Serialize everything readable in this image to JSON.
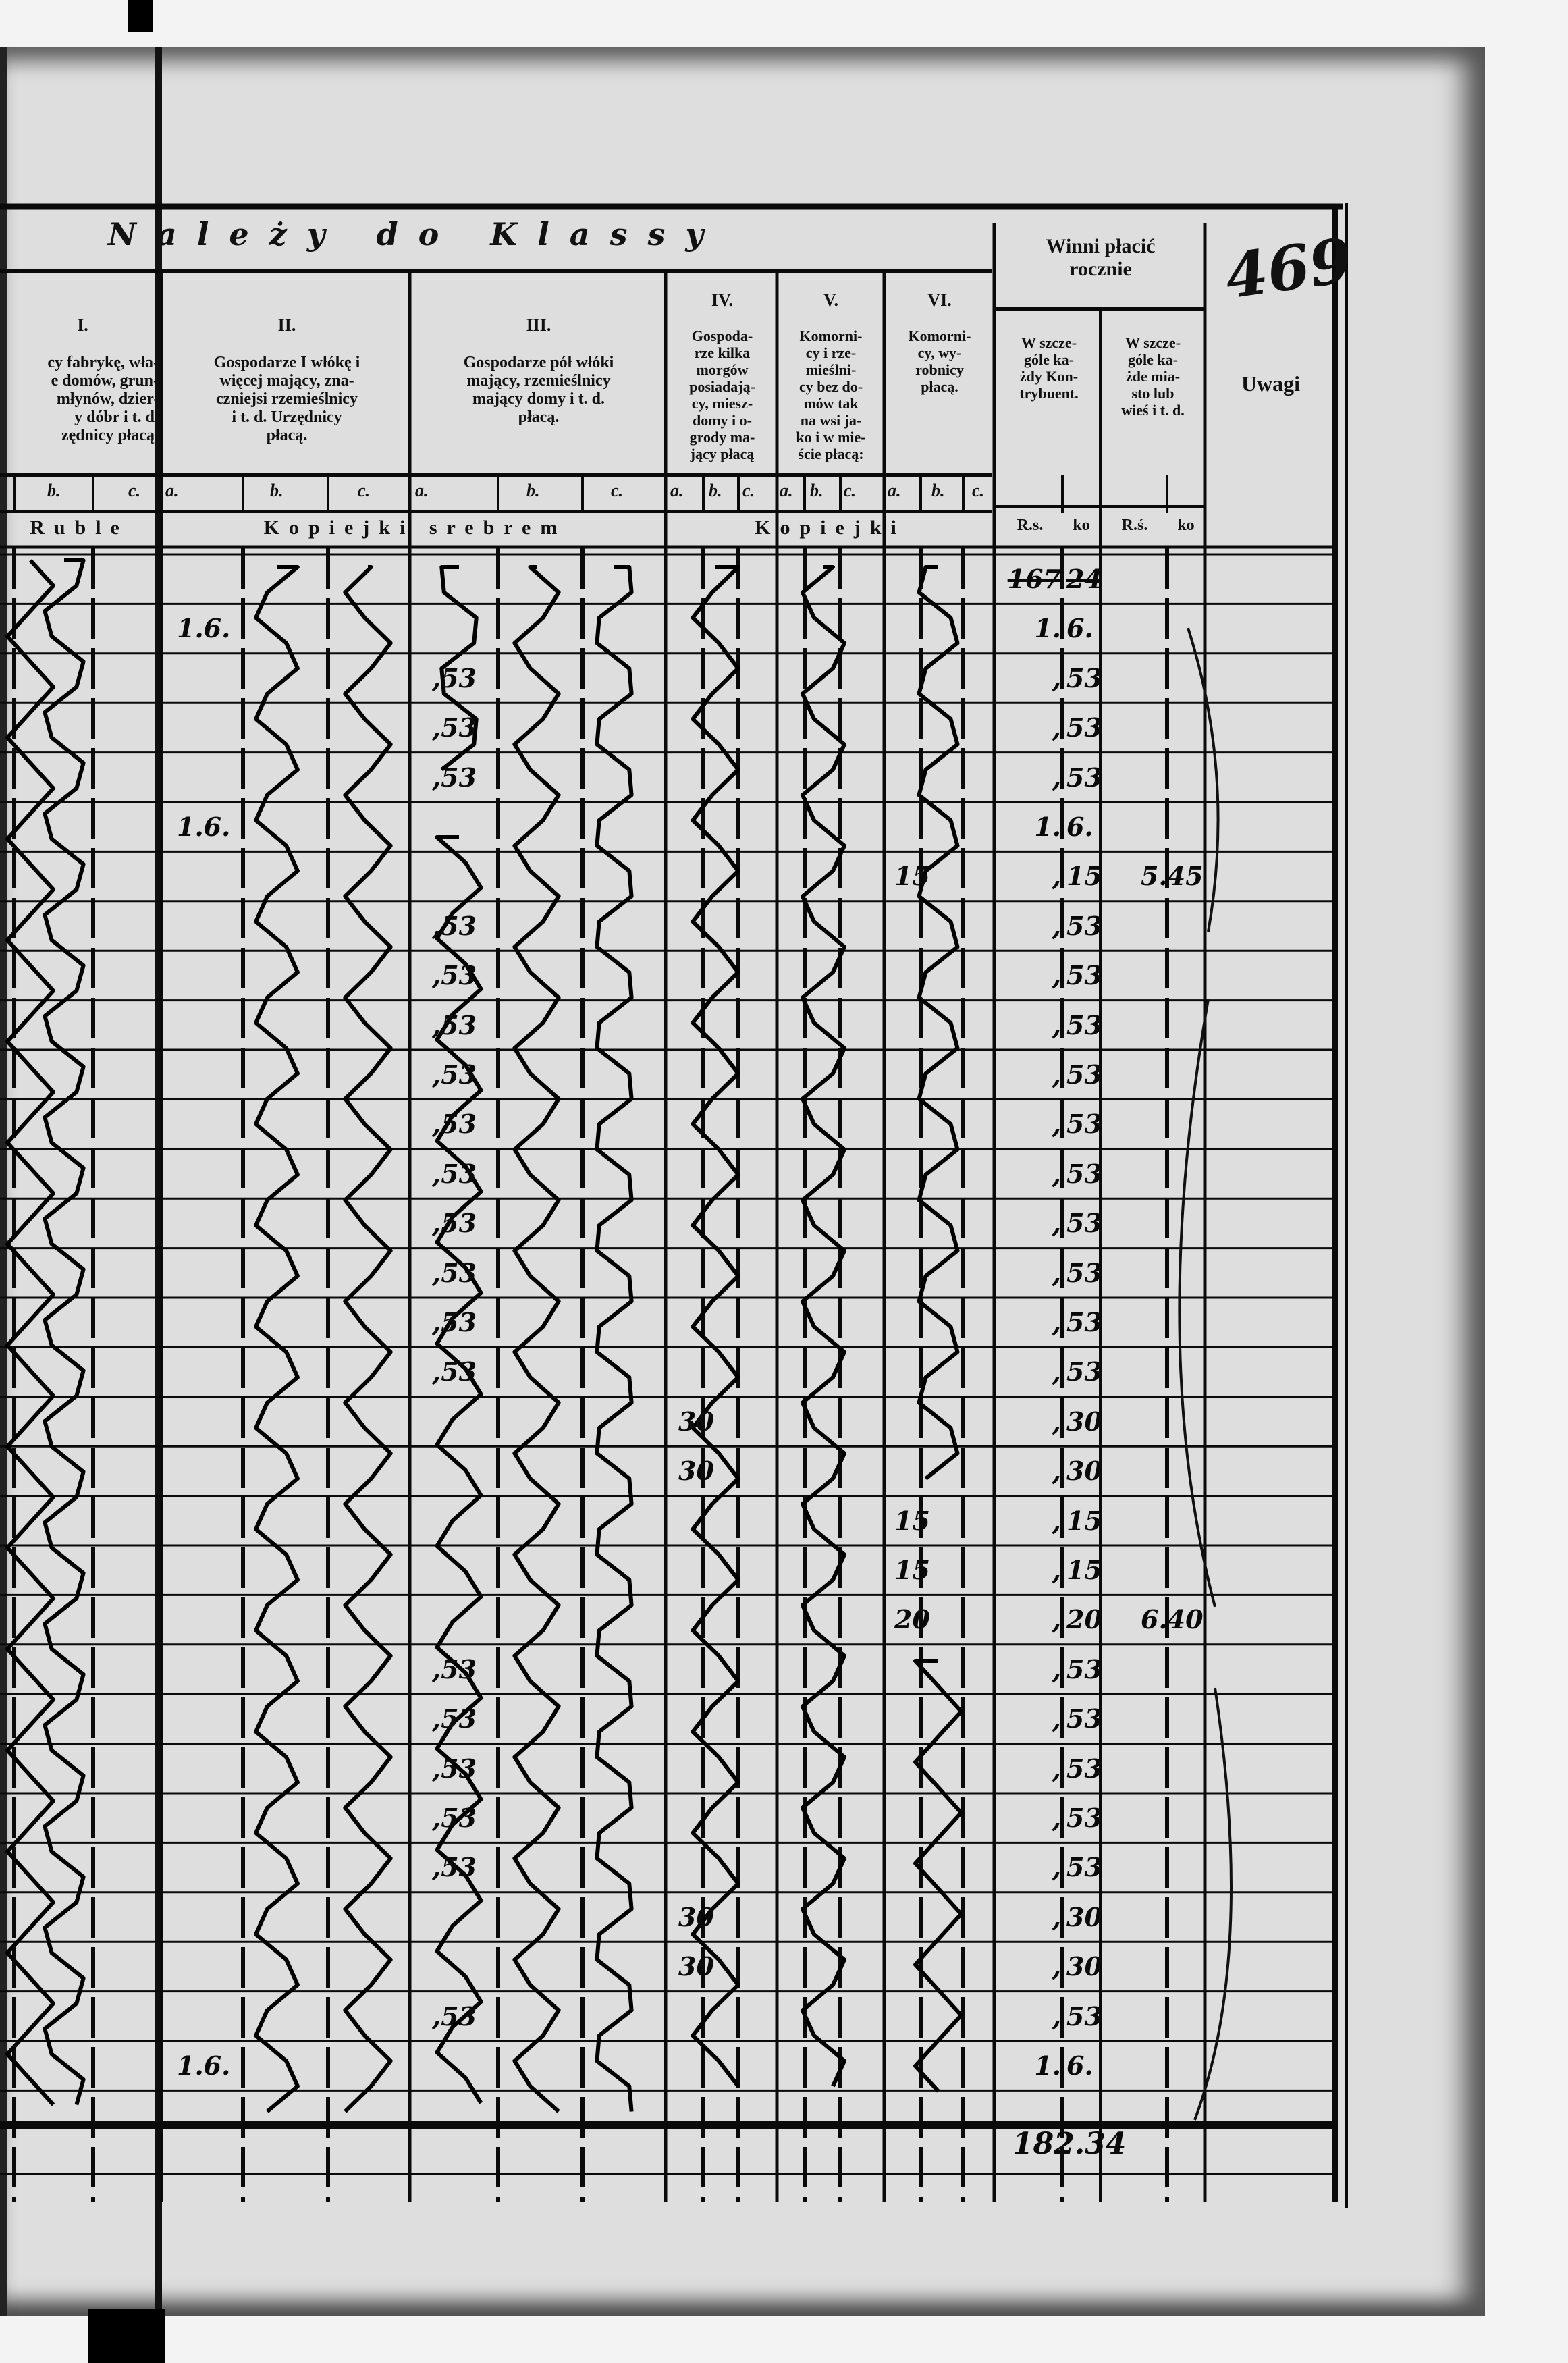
{
  "page_number": "469",
  "header": {
    "title": "Należy do Klassy",
    "classes": [
      {
        "numeral": "I.",
        "text": "cy fabrykę, wła-\ne domów, grun-\nmłynów, dzier-\ny dóbr i t. d.\nzędnicy płacą."
      },
      {
        "numeral": "II.",
        "text": "Gospodarze I włókę i\nwięcej mający, zna-\nczniejsi rzemieślnicy\ni t. d. Urzędnicy\npłacą."
      },
      {
        "numeral": "III.",
        "text": "Gospodarze pół włóki\nmający, rzemieślnicy\nmający domy i t. d.\npłacą."
      },
      {
        "numeral": "IV.",
        "text": "Gospoda-\nrze kilka\nmorgów\nposiadają-\ncy, miesz-\ndomy i o-\ngrody ma-\njący płacą"
      },
      {
        "numeral": "V.",
        "text": "Komorni-\ncy i rze-\nmieślni-\ncy bez do-\nmów tak\nna wsi ja-\nko i w mie-\nście płacą:"
      },
      {
        "numeral": "VI.",
        "text": "Komorni-\ncy, wy-\nrobnicy\npłacą."
      }
    ],
    "subcolumns": [
      "a.",
      "b.",
      "c."
    ],
    "currency": [
      "Ruble",
      "Kopiejki srebrem",
      "Kopiejki"
    ],
    "winni": {
      "title": "Winni płacić\nrocznie",
      "sub1": "W szcze-\ngóle ka-\nżdy Kon-\ntrybuent.",
      "sub2": "W szcze-\ngóle ka-\nżde mia-\nsto lub\nwieś i t. d.",
      "units": [
        "R.s.",
        "ko",
        "R.ś.",
        "ko"
      ]
    },
    "uwagi": "Uwagi"
  },
  "rows": [
    {
      "rs": "167",
      "ko": "24",
      "struck": true
    },
    {
      "ii": "1.6.",
      "rs": "1.",
      "ko": "6."
    },
    {
      "iii": ",53",
      "rs": ",",
      "ko": "53"
    },
    {
      "iii": ",53",
      "rs": ",",
      "ko": "53"
    },
    {
      "iii": ",53",
      "rs": ",",
      "ko": "53"
    },
    {
      "ii": "1.6.",
      "rs": "1.",
      "ko": "6."
    },
    {
      "vi": "15",
      "rs": ",",
      "ko": "15",
      "extra": "5.45"
    },
    {
      "iii": ",53",
      "rs": ",",
      "ko": "53"
    },
    {
      "iii": ",53",
      "rs": ",",
      "ko": "53"
    },
    {
      "iii": ",53",
      "rs": ",",
      "ko": "53"
    },
    {
      "iii": ",53",
      "rs": ",",
      "ko": "53"
    },
    {
      "iii": ",53",
      "rs": ",",
      "ko": "53"
    },
    {
      "iii": ",53",
      "rs": ",",
      "ko": "53"
    },
    {
      "iii": ",53",
      "rs": ",",
      "ko": "53"
    },
    {
      "iii": ",53",
      "rs": ",",
      "ko": "53"
    },
    {
      "iii": ",53",
      "rs": ",",
      "ko": "53"
    },
    {
      "iii": ",53",
      "rs": ",",
      "ko": "53"
    },
    {
      "iv": "30",
      "rs": ",",
      "ko": "30"
    },
    {
      "iv": "30",
      "rs": ",",
      "ko": "30"
    },
    {
      "vi": "15",
      "rs": ",",
      "ko": "15"
    },
    {
      "vi": "15",
      "rs": ",",
      "ko": "15"
    },
    {
      "vi": "20",
      "rs": ",",
      "ko": "20",
      "extra": "6.40"
    },
    {
      "iii": ",53",
      "rs": ",",
      "ko": "53"
    },
    {
      "iii": ",53",
      "rs": ",",
      "ko": "53"
    },
    {
      "iii": ",53",
      "rs": ",",
      "ko": "53"
    },
    {
      "iii": ",53",
      "rs": ",",
      "ko": "53"
    },
    {
      "iii": ",53",
      "rs": ",",
      "ko": "53"
    },
    {
      "iv": "30",
      "rs": ",",
      "ko": "30"
    },
    {
      "iv": "30",
      "rs": ",",
      "ko": "30"
    },
    {
      "iii": ",53",
      "rs": ",",
      "ko": "53"
    },
    {
      "ii": "1.6.",
      "rs": "1.",
      "ko": "6."
    },
    {}
  ],
  "total": "182.34"
}
